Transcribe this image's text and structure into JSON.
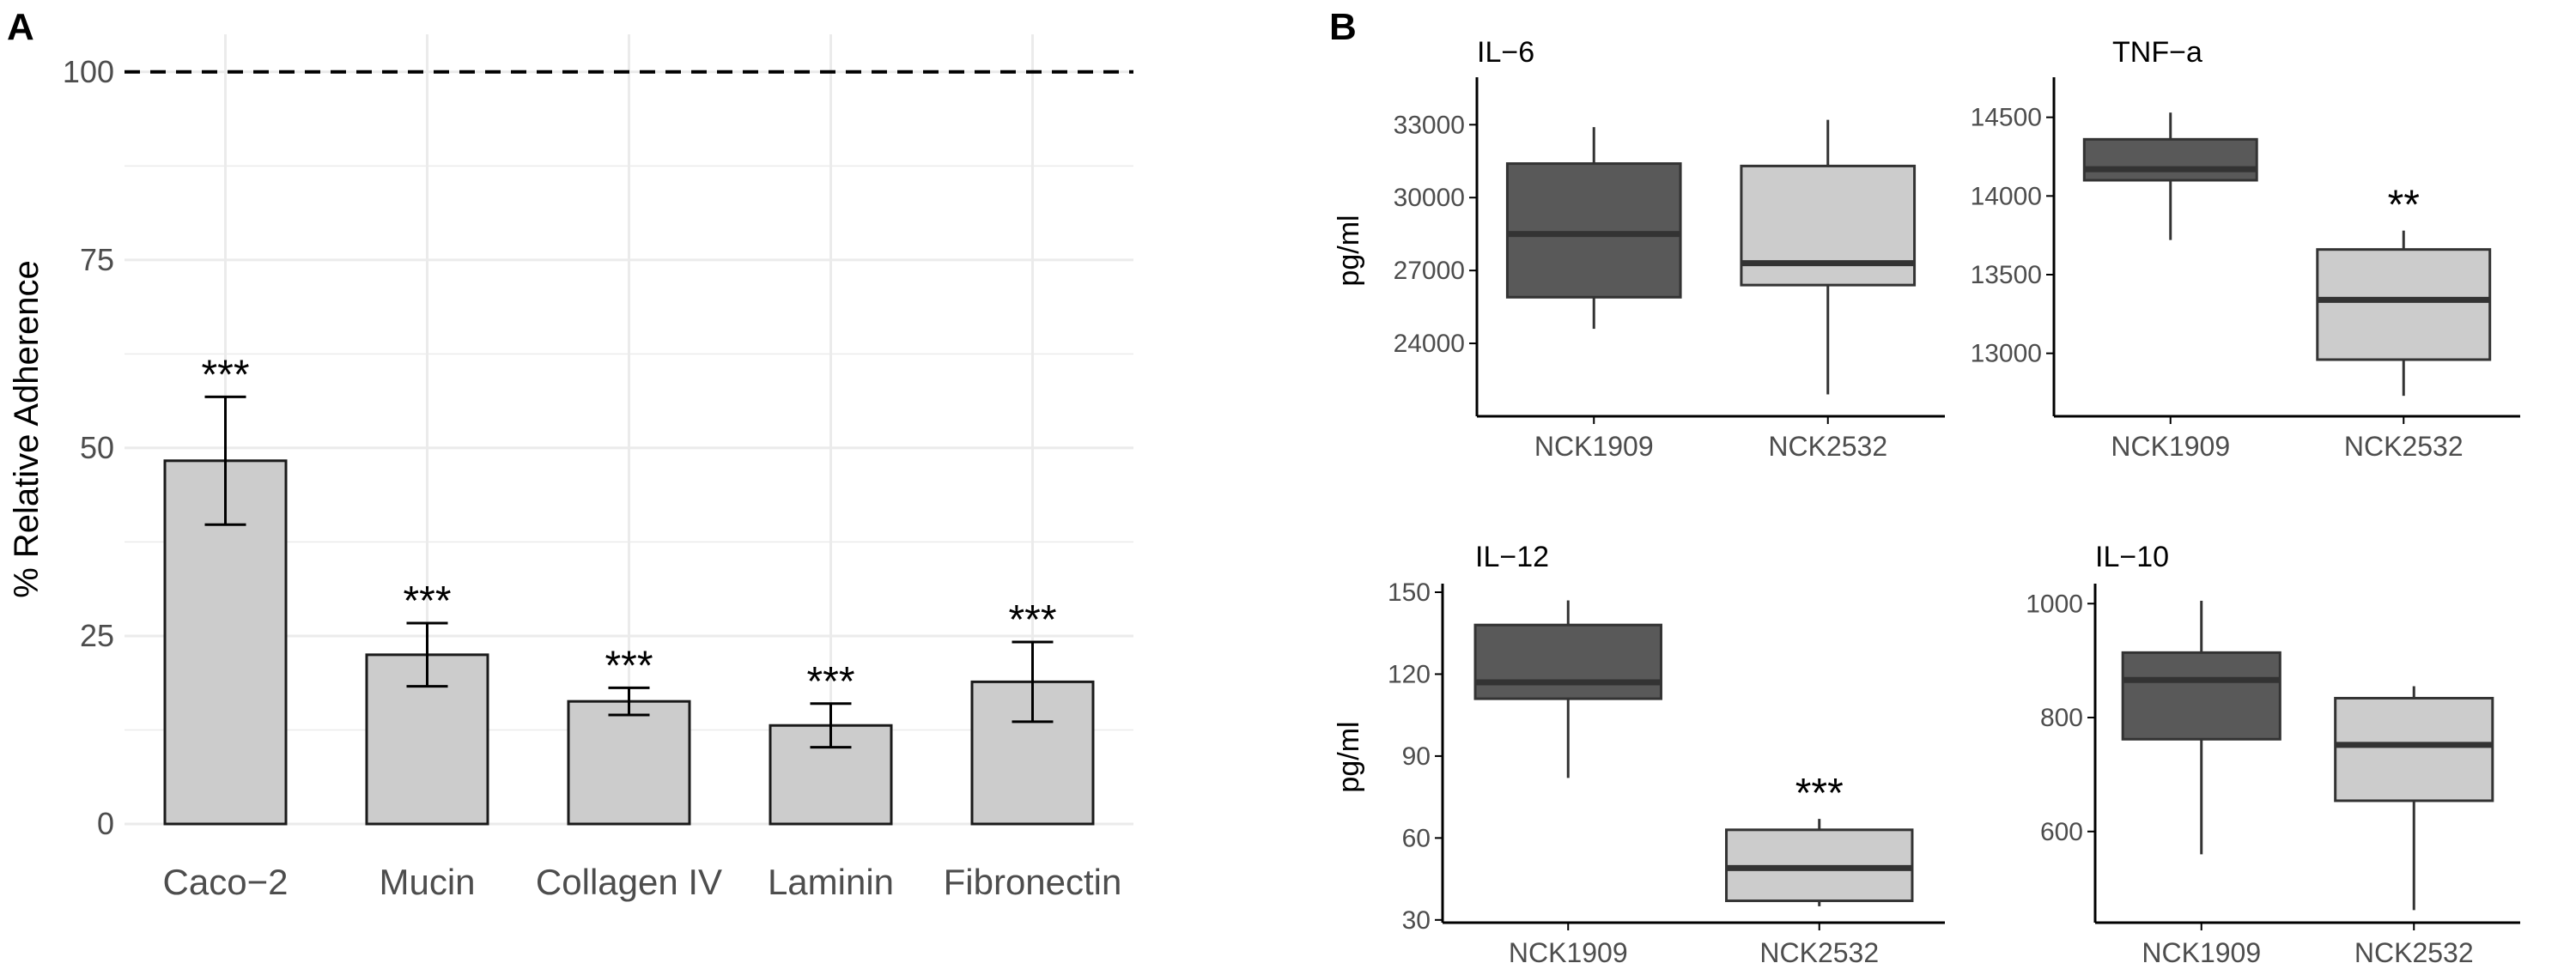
{
  "panel_a": {
    "letter": "A",
    "reference_value": 100
  },
  "panel_b": {
    "letter": "B"
  },
  "chart_data": [
    {
      "type": "bar",
      "panel": "A",
      "title": "",
      "xlabel": "",
      "ylabel": "% Relative Adherence",
      "ylim": [
        0,
        105
      ],
      "yticks": [
        0,
        25,
        50,
        75,
        100
      ],
      "grid": true,
      "reference_line": 100,
      "categories": [
        "Caco−2",
        "Mucin",
        "Collagen IV",
        "Laminin",
        "Fibronectin"
      ],
      "values": [
        48.3,
        22.5,
        16.3,
        13.1,
        18.9
      ],
      "errors": [
        8.5,
        4.2,
        1.8,
        2.9,
        5.3
      ],
      "significance": [
        "***",
        "***",
        "***",
        "***",
        "***"
      ],
      "colors": {
        "bar": "#cccccc",
        "edge": "#1a1a1a"
      }
    },
    {
      "type": "box",
      "panel": "B",
      "title": "IL−6",
      "ylabel": "pg/ml",
      "categories": [
        "NCK1909",
        "NCK2532"
      ],
      "yticks": [
        24000,
        27000,
        30000,
        33000
      ],
      "ylim": [
        21000,
        34600
      ],
      "boxes": [
        {
          "name": "NCK1909",
          "min": 24600,
          "q1": 25900,
          "median": 28500,
          "q3": 31400,
          "max": 32900
        },
        {
          "name": "NCK2532",
          "min": 21900,
          "q1": 26400,
          "median": 27300,
          "q3": 31300,
          "max": 33200
        }
      ],
      "significance": [
        "",
        ""
      ],
      "colors": [
        "#595959",
        "#cccccc"
      ]
    },
    {
      "type": "box",
      "panel": "B",
      "title": "TNF−a",
      "ylabel": "",
      "categories": [
        "NCK1909",
        "NCK2532"
      ],
      "yticks": [
        13000,
        13500,
        14000,
        14500
      ],
      "ylim": [
        12600,
        14700
      ],
      "boxes": [
        {
          "name": "NCK1909",
          "min": 13720,
          "q1": 14100,
          "median": 14170,
          "q3": 14360,
          "max": 14530
        },
        {
          "name": "NCK2532",
          "min": 12730,
          "q1": 12960,
          "median": 13340,
          "q3": 13660,
          "max": 13780
        }
      ],
      "significance": [
        "",
        "**"
      ],
      "colors": [
        "#595959",
        "#cccccc"
      ]
    },
    {
      "type": "box",
      "panel": "B",
      "title": "IL−12",
      "ylabel": "pg/ml",
      "categories": [
        "NCK1909",
        "NCK2532"
      ],
      "yticks": [
        30,
        60,
        90,
        120,
        150
      ],
      "ylim": [
        29,
        150
      ],
      "boxes": [
        {
          "name": "NCK1909",
          "min": 82,
          "q1": 111,
          "median": 117,
          "q3": 138,
          "max": 147
        },
        {
          "name": "NCK2532",
          "min": 35,
          "q1": 37,
          "median": 49,
          "q3": 63,
          "max": 67
        }
      ],
      "significance": [
        "",
        "***"
      ],
      "colors": [
        "#595959",
        "#cccccc"
      ]
    },
    {
      "type": "box",
      "panel": "B",
      "title": "IL−10",
      "ylabel": "",
      "categories": [
        "NCK1909",
        "NCK2532"
      ],
      "yticks": [
        600,
        800,
        1000
      ],
      "ylim": [
        440,
        1020
      ],
      "boxes": [
        {
          "name": "NCK1909",
          "min": 560,
          "q1": 762,
          "median": 866,
          "q3": 914,
          "max": 1005
        },
        {
          "name": "NCK2532",
          "min": 462,
          "q1": 654,
          "median": 752,
          "q3": 834,
          "max": 855
        }
      ],
      "significance": [
        "",
        ""
      ],
      "colors": [
        "#595959",
        "#cccccc"
      ]
    }
  ]
}
